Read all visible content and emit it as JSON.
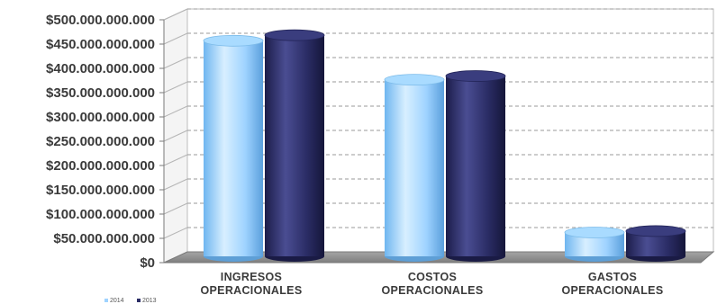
{
  "chart_data": {
    "type": "bar",
    "categories": [
      [
        "INGRESOS",
        "OPERACIONALES"
      ],
      [
        "COSTOS",
        "OPERACIONALES"
      ],
      [
        "GASTOS",
        "OPERACIONALES"
      ]
    ],
    "series": [
      {
        "name": "2014",
        "values": [
          470000000000,
          385000000000,
          52000000000
        ],
        "color": "#9fd3ff"
      },
      {
        "name": "2013",
        "values": [
          482000000000,
          393000000000,
          55000000000
        ],
        "color": "#2b2d66"
      }
    ],
    "ylim": [
      0,
      500000000000
    ],
    "yticks": [
      "$0",
      "$50.000.000.000",
      "$100.000.000.000",
      "$150.000.000.000",
      "$200.000.000.000",
      "$250.000.000.000",
      "$300.000.000.000",
      "$350.000.000.000",
      "$400.000.000.000",
      "$450.000.000.000",
      "$500.000.000.000"
    ],
    "grid": true,
    "legend_position": "bottom-left",
    "floor_color": "#8c8c8c"
  }
}
